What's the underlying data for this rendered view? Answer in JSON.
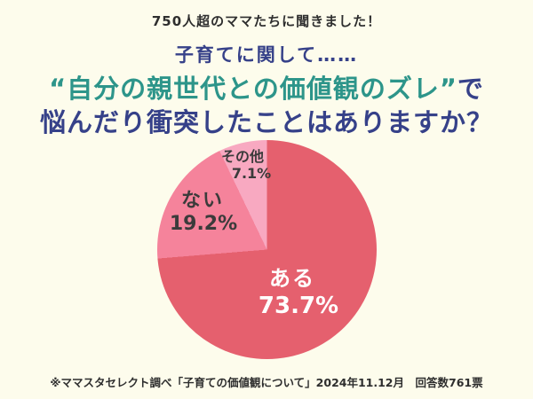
{
  "colors": {
    "background": "#fdfcec",
    "navy": "#364189",
    "teal": "#2d958a",
    "text_dark": "#2e2e2e",
    "label_dark": "#3b3b3b",
    "label_light": "#ffffff"
  },
  "header": {
    "topline": "750人超のママたちに聞きました！",
    "lead": "子育てに関して……",
    "headline_quoted": "“自分の親世代との価値観のズレ”",
    "headline_particle": "で",
    "headline_line2": "悩んだり衝突したことはありますか？"
  },
  "chart_data": {
    "type": "pie",
    "title": "“自分の親世代との価値観のズレ”で悩んだり衝突したことはありますか？",
    "unit": "%",
    "start_angle_deg": 0,
    "direction": "clockwise",
    "slices": [
      {
        "label": "ある",
        "value": 73.7,
        "display": "73.7%",
        "color": "#e5606e",
        "label_color": "#ffffff"
      },
      {
        "label": "ない",
        "value": 19.2,
        "display": "19.2%",
        "color": "#f5839b",
        "label_color": "#3b3b3b"
      },
      {
        "label": "その他",
        "value": 7.1,
        "display": "7.1%",
        "color": "#f8a9c1",
        "label_color": "#3b3b3b"
      }
    ]
  },
  "footer": {
    "note": "※ママスタセレクト調べ「子育ての価値観について」2024年11.12月　回答数761票"
  }
}
